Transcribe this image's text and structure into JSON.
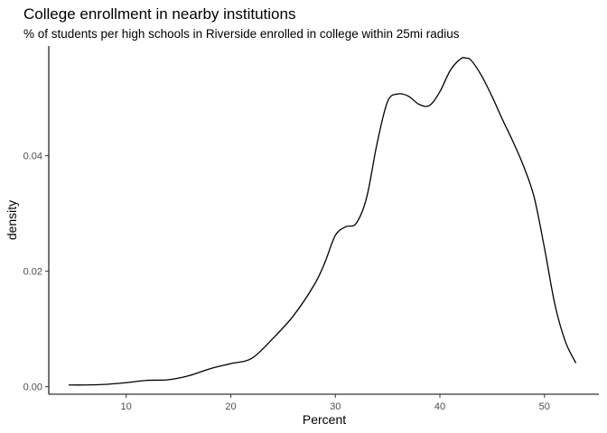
{
  "chart_data": {
    "type": "line",
    "title": "College enrollment in nearby institutions",
    "subtitle": "% of students per high schools in Riverside enrolled in college within 25mi radius",
    "xlabel": "Percent",
    "ylabel": "density",
    "xlim": [
      2.6,
      55.2
    ],
    "ylim": [
      -0.0013,
      0.059
    ],
    "x_ticks": [
      10,
      20,
      30,
      40,
      50
    ],
    "x_tick_labels": [
      "10",
      "20",
      "30",
      "40",
      "50"
    ],
    "y_ticks": [
      0.0,
      0.02,
      0.04
    ],
    "y_tick_labels": [
      "0.00",
      "0.02",
      "0.04"
    ],
    "grid": false,
    "legend": "none",
    "series": [
      {
        "color": "#000000",
        "x": [
          4.5,
          6,
          8,
          10,
          12,
          14,
          16,
          18,
          20,
          22,
          24,
          26,
          28,
          29,
          30,
          31,
          32,
          33,
          34,
          35,
          36,
          37,
          38,
          39,
          40,
          41,
          42,
          42.5,
          43,
          44,
          45,
          46,
          47,
          48,
          49,
          50,
          51,
          52,
          53
        ],
        "y": [
          0.0003,
          0.0003,
          0.0004,
          0.0007,
          0.0011,
          0.0012,
          0.0019,
          0.0031,
          0.004,
          0.0049,
          0.0083,
          0.0123,
          0.0177,
          0.0215,
          0.0262,
          0.0277,
          0.0283,
          0.0328,
          0.0422,
          0.0494,
          0.0507,
          0.0503,
          0.0489,
          0.0487,
          0.0511,
          0.0548,
          0.0568,
          0.0569,
          0.0565,
          0.0538,
          0.0502,
          0.0462,
          0.0424,
          0.0382,
          0.0329,
          0.024,
          0.0142,
          0.0078,
          0.0041
        ]
      }
    ]
  }
}
